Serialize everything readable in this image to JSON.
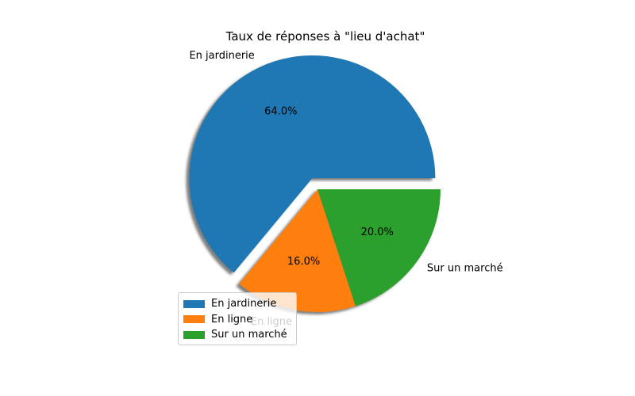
{
  "chart_data": {
    "type": "pie",
    "title": "Taux de réponses à \"lieu d'achat\"",
    "categories": [
      "En jardinerie",
      "En ligne",
      "Sur un marché"
    ],
    "values": [
      64.0,
      16.0,
      20.0
    ],
    "percent_labels": [
      "64.0%",
      "16.0%",
      "20.0%"
    ],
    "colors": [
      "#1f77b4",
      "#ff7f0e",
      "#2ca02c"
    ],
    "exploded": [
      true,
      false,
      false
    ],
    "shadow": true,
    "legend": {
      "placement": "lower-left",
      "entries": [
        "En jardinerie",
        "En ligne",
        "Sur un marché"
      ]
    }
  }
}
